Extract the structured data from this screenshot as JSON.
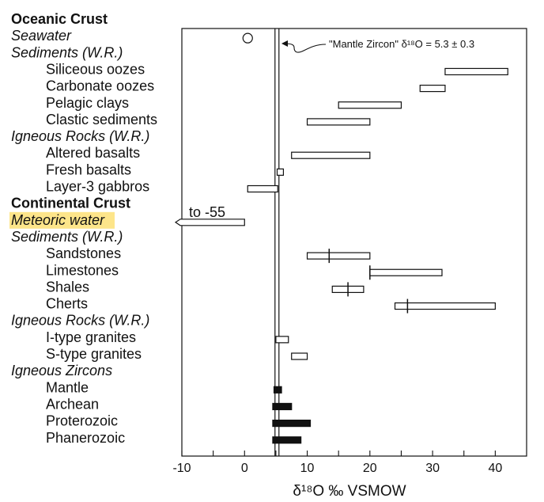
{
  "chart_data": {
    "type": "range",
    "xlabel": "δ¹⁸O ‰ VSMOW",
    "xlim": [
      -10,
      45
    ],
    "xticks": [
      -10,
      0,
      10,
      20,
      30,
      40
    ],
    "reference_line": {
      "value": 5.3,
      "uncertainty": 0.3,
      "label": "\"Mantle Zircon\" δ¹⁸O = 5.3 ± 0.3"
    },
    "rows": [
      {
        "label": "Oceanic Crust",
        "style": "header"
      },
      {
        "label": "Seawater",
        "style": "subheader",
        "point": 0
      },
      {
        "label": "Sediments (W.R.)",
        "style": "subheader"
      },
      {
        "label": "Siliceous oozes",
        "style": "item",
        "range": [
          32,
          42
        ],
        "fill": "open"
      },
      {
        "label": "Carbonate oozes",
        "style": "item",
        "range": [
          28,
          32
        ],
        "fill": "open"
      },
      {
        "label": "Pelagic clays",
        "style": "item",
        "range": [
          15,
          25
        ],
        "fill": "open"
      },
      {
        "label": "Clastic sediments",
        "style": "item",
        "range": [
          10,
          20
        ],
        "fill": "open"
      },
      {
        "label": "Igneous Rocks (W.R.)",
        "style": "subheader"
      },
      {
        "label": "Altered basalts",
        "style": "item",
        "range": [
          7.5,
          20
        ],
        "fill": "open"
      },
      {
        "label": "Fresh basalts",
        "style": "item",
        "range": [
          5.2,
          6.2
        ],
        "fill": "open"
      },
      {
        "label": "Layer-3 gabbros",
        "style": "item",
        "range": [
          0.5,
          5.3
        ],
        "fill": "open"
      },
      {
        "label": "Continental Crust",
        "style": "header"
      },
      {
        "label": "Meteoric water",
        "style": "subheader",
        "highlight": true,
        "range": [
          -55,
          0
        ],
        "arrow_left": true,
        "arrow_text": "to -55"
      },
      {
        "label": "Sediments (W.R.)",
        "style": "subheader"
      },
      {
        "label": "Sandstones",
        "style": "item",
        "range": [
          10,
          20
        ],
        "fill": "open",
        "mark": 13.5
      },
      {
        "label": "Limestones",
        "style": "item",
        "range": [
          20,
          31.5
        ],
        "fill": "open",
        "mark": 20
      },
      {
        "label": "Shales",
        "style": "item",
        "range": [
          14,
          19
        ],
        "fill": "open",
        "mark": 16.5
      },
      {
        "label": "Cherts",
        "style": "item",
        "range": [
          24,
          40
        ],
        "fill": "open",
        "mark": 26
      },
      {
        "label": "Igneous Rocks (W.R.)",
        "style": "subheader"
      },
      {
        "label": "I-type granites",
        "style": "item",
        "range": [
          5,
          7
        ],
        "fill": "open"
      },
      {
        "label": "S-type granites",
        "style": "item",
        "range": [
          7.5,
          10
        ],
        "fill": "open"
      },
      {
        "label": "Igneous Zircons",
        "style": "subheader"
      },
      {
        "label": "Mantle",
        "style": "item",
        "range": [
          4.7,
          5.9
        ],
        "fill": "solid"
      },
      {
        "label": "Archean",
        "style": "item",
        "range": [
          4.5,
          7.5
        ],
        "fill": "solid"
      },
      {
        "label": "Proterozoic",
        "style": "item",
        "range": [
          4.5,
          10.5
        ],
        "fill": "solid"
      },
      {
        "label": "Phanerozoic",
        "style": "item",
        "range": [
          4.5,
          9
        ],
        "fill": "solid"
      }
    ]
  }
}
